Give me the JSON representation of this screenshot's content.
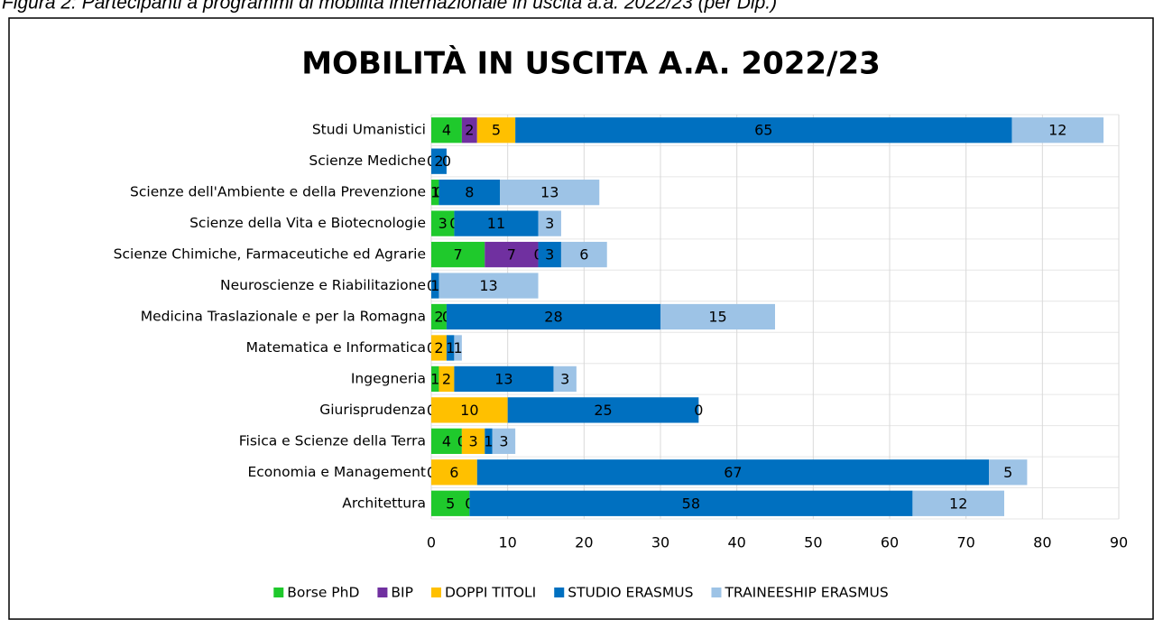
{
  "caption": "Figura 2: Partecipanti a programmi di mobilità internazionale in uscita a.a. 2022/23 (per Dip.)",
  "chart_data": {
    "type": "stacked-bar-horizontal",
    "title": "MOBILITÀ IN USCITA A.A. 2022/23",
    "categories": [
      "Studi Umanistici",
      "Scienze Mediche",
      "Scienze dell'Ambiente e della Prevenzione",
      "Scienze della Vita e Biotecnologie",
      "Scienze Chimiche, Farmaceutiche ed Agrarie",
      "Neuroscienze e Riabilitazione",
      "Medicina Traslazionale e per la Romagna",
      "Matematica e Informatica",
      "Ingegneria",
      "Giurisprudenza",
      "Fisica e Scienze della Terra",
      "Economia e Management",
      "Architettura"
    ],
    "series": [
      {
        "name": "Borse PhD",
        "color": "#1fc92c",
        "values": [
          4,
          0,
          1,
          3,
          7,
          0,
          2,
          0,
          1,
          0,
          4,
          0,
          5
        ]
      },
      {
        "name": "BIP",
        "color": "#7030a0",
        "values": [
          2,
          null,
          null,
          null,
          7,
          null,
          null,
          null,
          null,
          null,
          0,
          null,
          null
        ]
      },
      {
        "name": "DOPPI TITOLI",
        "color": "#ffc000",
        "values": [
          5,
          null,
          0,
          0,
          0,
          null,
          0,
          2,
          2,
          10,
          3,
          6,
          0
        ]
      },
      {
        "name": "STUDIO ERASMUS",
        "color": "#0070c0",
        "values": [
          65,
          2,
          8,
          11,
          3,
          1,
          28,
          1,
          13,
          25,
          1,
          67,
          58
        ]
      },
      {
        "name": "TRAINEESHIP ERASMUS",
        "color": "#9dc3e6",
        "values": [
          12,
          0,
          13,
          3,
          6,
          13,
          15,
          1,
          3,
          0,
          3,
          5,
          12
        ]
      }
    ],
    "xlim": [
      0,
      90
    ],
    "xticks": [
      0,
      10,
      20,
      30,
      40,
      50,
      60,
      70,
      80,
      90
    ],
    "grid": true,
    "legend": "bottom"
  }
}
